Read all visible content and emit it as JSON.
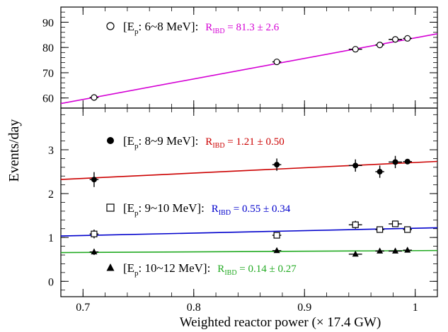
{
  "chart_data": {
    "type": "scatter",
    "xlabel": "Weighted reactor power (× 17.4 GW)",
    "ylabel": "Events/day",
    "xlim": [
      0.68,
      1.02
    ],
    "x_ticks": [
      "0.7",
      "0.8",
      "0.9",
      "1"
    ],
    "x_tick_values": [
      0.7,
      0.8,
      0.9,
      1.0
    ],
    "panels": [
      {
        "id": "top",
        "ylim": [
          56,
          96
        ],
        "y_ticks": [
          "60",
          "70",
          "80",
          "90"
        ],
        "y_tick_values": [
          60,
          70,
          80,
          90
        ],
        "series": [
          {
            "label_text": "[E",
            "label_sub": "p",
            "label_range": ": 6~8 MeV]:",
            "rate_text": "R",
            "rate_sub": "IBD",
            "rate_value": " = 81.3 ± 2.6",
            "marker": "open-circle",
            "color": "#d400d4",
            "fit": {
              "intercept": 2.5,
              "slope": 81.3
            },
            "points": [
              {
                "x": 0.71,
                "y": 60.2,
                "xerr": 0.004,
                "yerr": 0.4
              },
              {
                "x": 0.875,
                "y": 74.3,
                "xerr": 0.004,
                "yerr": 0.4
              },
              {
                "x": 0.946,
                "y": 79.3,
                "xerr": 0.006,
                "yerr": 0.4
              },
              {
                "x": 0.968,
                "y": 81.0,
                "xerr": 0.004,
                "yerr": 0.4
              },
              {
                "x": 0.982,
                "y": 83.2,
                "xerr": 0.006,
                "yerr": 0.4
              },
              {
                "x": 0.993,
                "y": 83.6,
                "xerr": 0.004,
                "yerr": 0.4
              }
            ]
          }
        ]
      },
      {
        "id": "bottom",
        "ylim": [
          -0.35,
          3.95
        ],
        "y_ticks": [
          "0",
          "1",
          "2",
          "3"
        ],
        "y_tick_values": [
          0,
          1,
          2,
          3
        ],
        "series": [
          {
            "label_text": "[E",
            "label_sub": "p",
            "label_range": ": 8~9 MeV]:",
            "rate_text": "R",
            "rate_sub": "IBD",
            "rate_value": " = 1.21 ± 0.50",
            "marker": "filled-circle",
            "color": "#cc0000",
            "fit": {
              "intercept": 1.5,
              "slope": 1.21
            },
            "points": [
              {
                "x": 0.71,
                "y": 2.32,
                "xerr": 0.004,
                "yerr": 0.17
              },
              {
                "x": 0.875,
                "y": 2.66,
                "xerr": 0.004,
                "yerr": 0.14
              },
              {
                "x": 0.946,
                "y": 2.64,
                "xerr": 0.006,
                "yerr": 0.14
              },
              {
                "x": 0.968,
                "y": 2.5,
                "xerr": 0.004,
                "yerr": 0.14
              },
              {
                "x": 0.982,
                "y": 2.72,
                "xerr": 0.006,
                "yerr": 0.14
              },
              {
                "x": 0.993,
                "y": 2.73,
                "xerr": 0.004,
                "yerr": 0.06
              }
            ]
          },
          {
            "label_text": "[E",
            "label_sub": "p",
            "label_range": ": 9~10 MeV]:",
            "rate_text": "R",
            "rate_sub": "IBD",
            "rate_value": " = 0.55 ± 0.34",
            "marker": "open-square",
            "color": "#0000cc",
            "fit": {
              "intercept": 0.66,
              "slope": 0.55
            },
            "points": [
              {
                "x": 0.71,
                "y": 1.08,
                "xerr": 0.004,
                "yerr": 0.1
              },
              {
                "x": 0.875,
                "y": 1.05,
                "xerr": 0.004,
                "yerr": 0.07
              },
              {
                "x": 0.946,
                "y": 1.29,
                "xerr": 0.006,
                "yerr": 0.09
              },
              {
                "x": 0.968,
                "y": 1.18,
                "xerr": 0.004,
                "yerr": 0.07
              },
              {
                "x": 0.982,
                "y": 1.31,
                "xerr": 0.006,
                "yerr": 0.07
              },
              {
                "x": 0.993,
                "y": 1.18,
                "xerr": 0.004,
                "yerr": 0.04
              }
            ]
          },
          {
            "label_text": "[E",
            "label_sub": "p",
            "label_range": ": 10~12 MeV]:",
            "rate_text": "R",
            "rate_sub": "IBD",
            "rate_value": " = 0.14 ± 0.27",
            "marker": "filled-triangle",
            "color": "#22aa22",
            "fit": {
              "intercept": 0.56,
              "slope": 0.14
            },
            "points": [
              {
                "x": 0.71,
                "y": 0.67,
                "xerr": 0.004,
                "yerr": 0.07
              },
              {
                "x": 0.875,
                "y": 0.7,
                "xerr": 0.004,
                "yerr": 0.05
              },
              {
                "x": 0.946,
                "y": 0.62,
                "xerr": 0.006,
                "yerr": 0.05
              },
              {
                "x": 0.968,
                "y": 0.69,
                "xerr": 0.004,
                "yerr": 0.05
              },
              {
                "x": 0.982,
                "y": 0.69,
                "xerr": 0.006,
                "yerr": 0.05
              },
              {
                "x": 0.993,
                "y": 0.71,
                "xerr": 0.004,
                "yerr": 0.03
              }
            ]
          }
        ]
      }
    ]
  }
}
